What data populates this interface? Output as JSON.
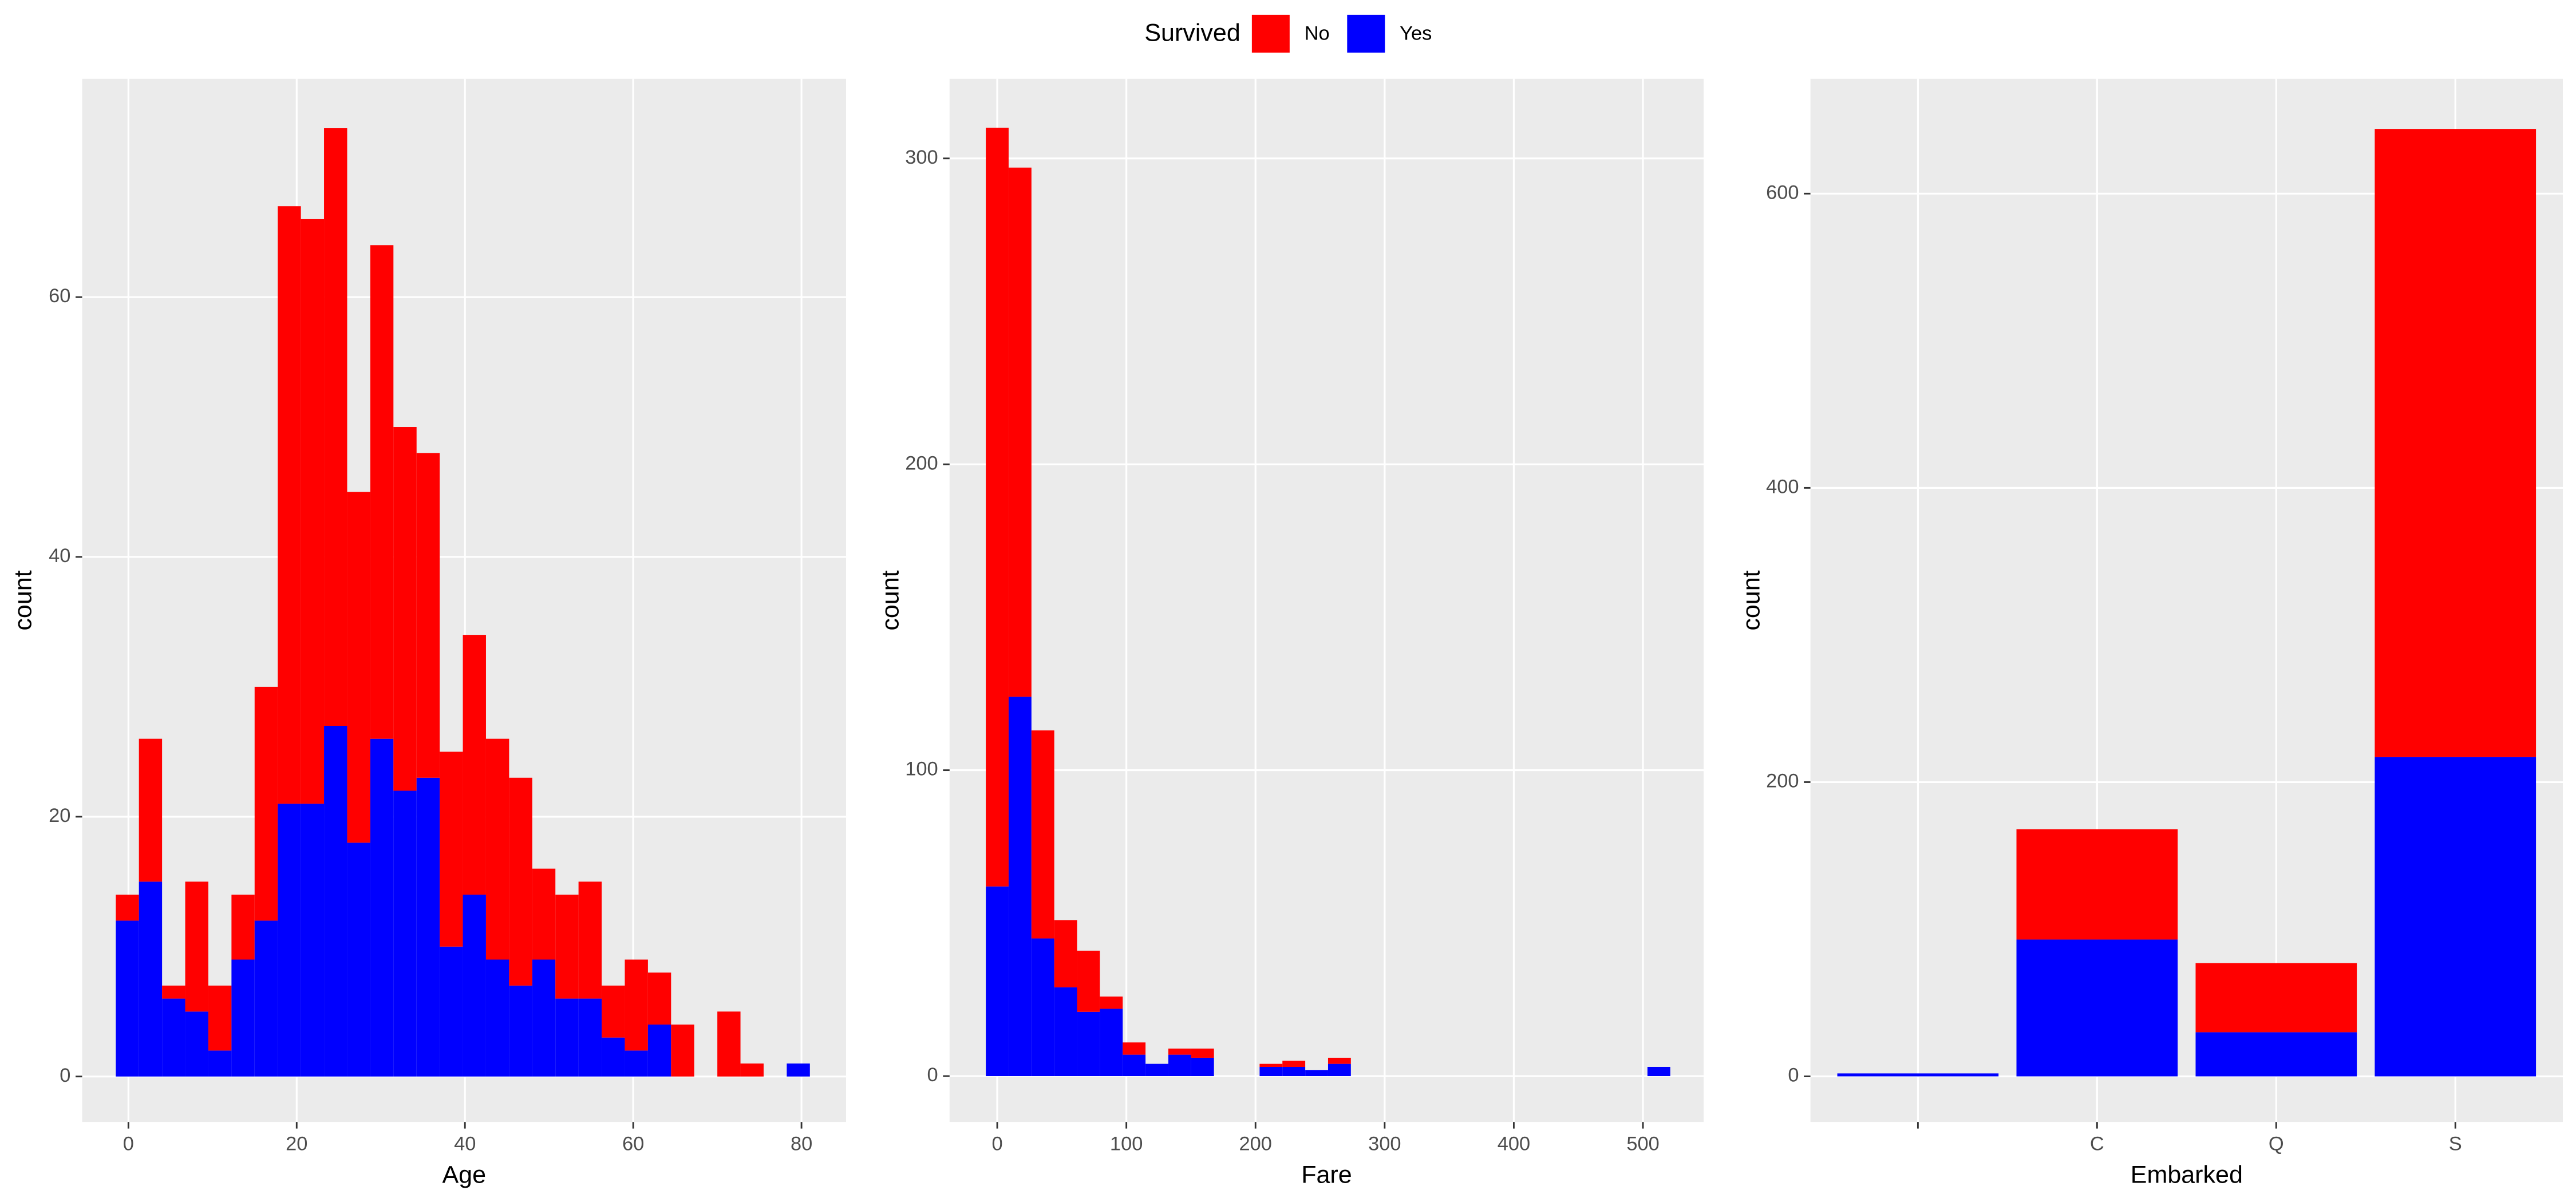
{
  "chart_data": [
    {
      "type": "histogram",
      "xlabel": "Age",
      "ylabel": "count",
      "legend_title": "Survived",
      "bins": [
        -1.5,
        1.25,
        4,
        6.75,
        9.5,
        12.25,
        15,
        17.75,
        20.5,
        23.25,
        26,
        28.75,
        31.5,
        34.25,
        37,
        39.75,
        42.5,
        45.25,
        48,
        50.75,
        53.5,
        56.25,
        59,
        61.75,
        64.5,
        67.25,
        70,
        72.75,
        75.5,
        78.25,
        81
      ],
      "series": [
        {
          "name": "No",
          "color": "#ff0000",
          "values": [
            2,
            11,
            1,
            10,
            5,
            5,
            18,
            46,
            45,
            46,
            27,
            38,
            28,
            25,
            15,
            20,
            17,
            16,
            7,
            8,
            9,
            4,
            7,
            4,
            4,
            0,
            5,
            1,
            0,
            0
          ]
        },
        {
          "name": "Yes",
          "color": "#0000ff",
          "values": [
            12,
            15,
            6,
            5,
            2,
            9,
            12,
            21,
            21,
            27,
            18,
            26,
            22,
            23,
            10,
            14,
            9,
            7,
            9,
            6,
            6,
            3,
            2,
            4,
            0,
            0,
            0,
            0,
            0,
            1
          ]
        }
      ],
      "xlim": [
        -5.5,
        85.3
      ],
      "xticks": [
        0,
        20,
        40,
        60,
        80
      ],
      "ylim": [
        -3.5,
        76.8
      ],
      "yticks": [
        0,
        20,
        40,
        60
      ],
      "grid": true
    },
    {
      "type": "histogram",
      "xlabel": "Fare",
      "ylabel": "count",
      "bins": [
        -8.83,
        8.83,
        26.5,
        44.17,
        61.83,
        79.5,
        97.17,
        114.83,
        132.5,
        150.17,
        167.83,
        185.5,
        203.17,
        220.83,
        238.5,
        256.17,
        273.83,
        291.5,
        309.17,
        326.83,
        344.5,
        362.17,
        379.83,
        397.5,
        415.17,
        432.83,
        450.5,
        468.17,
        485.83,
        503.5,
        521.17
      ],
      "series": [
        {
          "name": "No",
          "color": "#ff0000",
          "values": [
            248,
            173,
            68,
            22,
            20,
            4,
            4,
            0,
            2,
            3,
            0,
            0,
            1,
            2,
            0,
            2,
            0,
            0,
            0,
            0,
            0,
            0,
            0,
            0,
            0,
            0,
            0,
            0,
            0,
            0
          ]
        },
        {
          "name": "Yes",
          "color": "#0000ff",
          "values": [
            62,
            124,
            45,
            29,
            21,
            22,
            7,
            4,
            7,
            6,
            0,
            0,
            3,
            3,
            2,
            4,
            0,
            0,
            0,
            0,
            0,
            0,
            0,
            0,
            0,
            0,
            0,
            0,
            0,
            3
          ]
        }
      ],
      "xlim": [
        -36.9,
        547
      ],
      "xticks": [
        0,
        100,
        200,
        300,
        400,
        500
      ],
      "ylim": [
        -15,
        326
      ],
      "yticks": [
        0,
        100,
        200,
        300
      ],
      "grid": true
    },
    {
      "type": "bar",
      "xlabel": "Embarked",
      "ylabel": "count",
      "categories": [
        null,
        "C",
        "Q",
        "S"
      ],
      "series": [
        {
          "name": "No",
          "color": "#ff0000",
          "values": [
            0,
            75,
            47,
            427
          ]
        },
        {
          "name": "Yes",
          "color": "#0000ff",
          "values": [
            2,
            93,
            30,
            217
          ]
        }
      ],
      "ylim": [
        -31,
        678
      ],
      "yticks": [
        0,
        200,
        400,
        600
      ],
      "grid": true
    }
  ]
}
